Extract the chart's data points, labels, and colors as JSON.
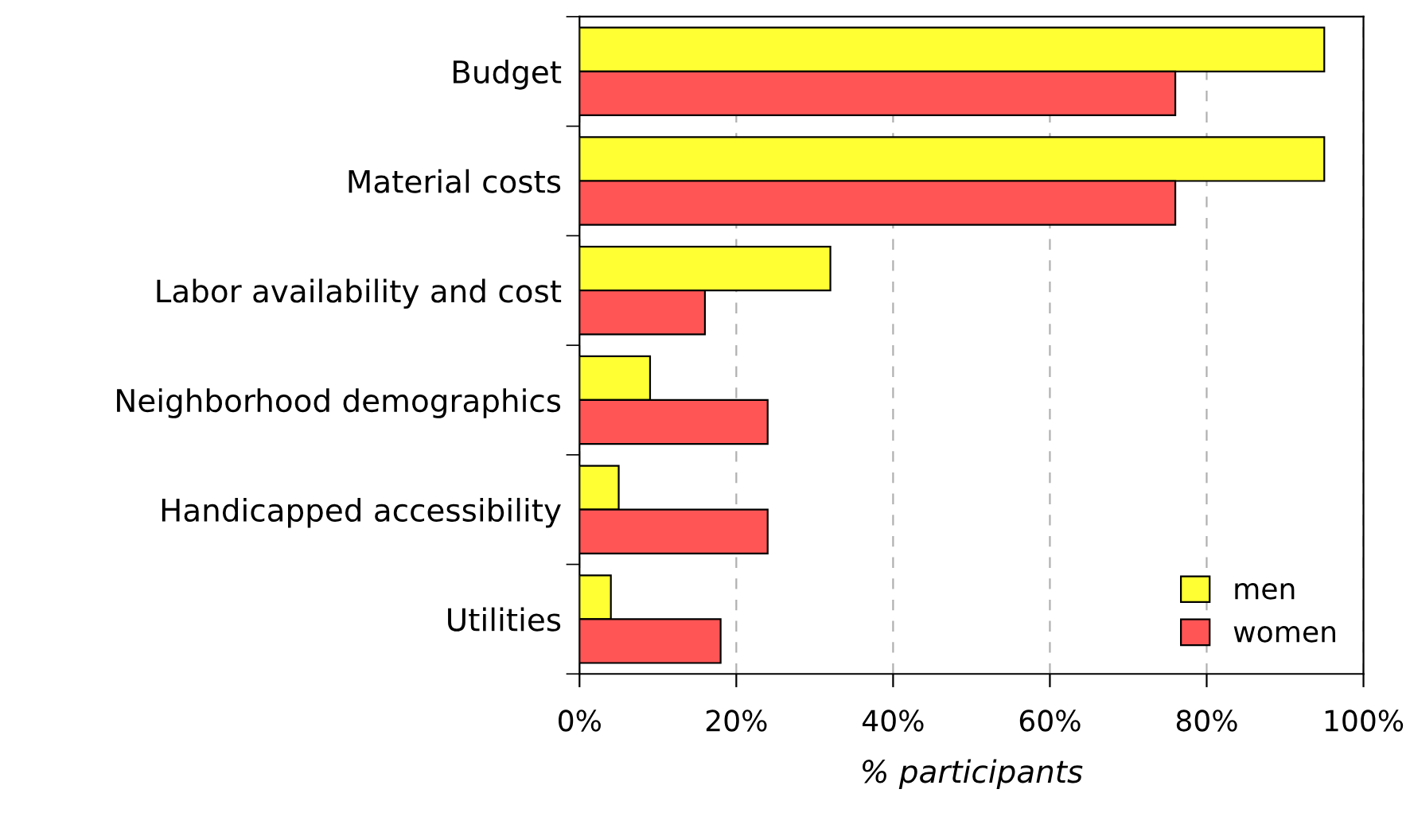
{
  "chart_data": {
    "type": "bar",
    "orientation": "horizontal",
    "xlabel": "% participants",
    "categories": [
      "Budget",
      "Material costs",
      "Labor availability and cost",
      "Neighborhood demographics",
      "Handicapped accessibility",
      "Utilities"
    ],
    "series": [
      {
        "name": "men",
        "color": "#ffff33",
        "values": [
          95,
          95,
          32,
          9,
          5,
          4
        ]
      },
      {
        "name": "women",
        "color": "#ff5555",
        "values": [
          76,
          76,
          16,
          24,
          24,
          18
        ]
      }
    ],
    "xlim": [
      0,
      100
    ],
    "xticks": [
      {
        "value": 0,
        "label": "0%"
      },
      {
        "value": 20,
        "label": "20%"
      },
      {
        "value": 40,
        "label": "40%"
      },
      {
        "value": 60,
        "label": "60%"
      },
      {
        "value": 80,
        "label": "80%"
      },
      {
        "value": 100,
        "label": "100%"
      }
    ],
    "grid": "x",
    "legend": "bottom right"
  }
}
